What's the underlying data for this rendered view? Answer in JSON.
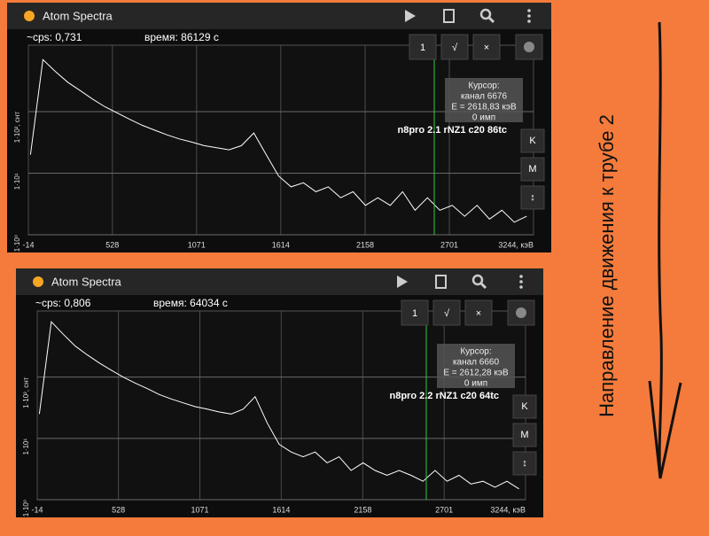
{
  "caption": "Направление движения к трубе 2",
  "screens": [
    {
      "app_title": "Atom Spectra",
      "cps": "~cps: 0,731",
      "time": "время: 86129 с",
      "buttons": [
        "1",
        "√",
        "×"
      ],
      "cursor": [
        "Курсор:",
        "канал 6676",
        "E = 2618,83 кэВ",
        "0 имп"
      ],
      "label": "n8pro 2.1 rNZ1 c20 86tc",
      "side_buttons": [
        "K",
        "M",
        "↕"
      ]
    },
    {
      "app_title": "Atom Spectra",
      "cps": "~cps: 0,806",
      "time": "время: 64034 с",
      "buttons": [
        "1",
        "√",
        "×"
      ],
      "cursor": [
        "Курсор:",
        "канал 6660",
        "E = 2612,28 кэВ",
        "0 имп"
      ],
      "label": "n8pro 2.2 rNZ1 c20 64tc",
      "side_buttons": [
        "K",
        "M",
        "↕"
      ]
    }
  ],
  "chart_data": [
    {
      "type": "line",
      "log_y": true,
      "grid": true,
      "x": [
        0,
        80,
        160,
        240,
        320,
        400,
        480,
        560,
        640,
        720,
        800,
        880,
        960,
        1040,
        1120,
        1200,
        1280,
        1360,
        1440,
        1520,
        1600,
        1680,
        1760,
        1840,
        1920,
        2000,
        2080,
        2160,
        2240,
        2320,
        2400,
        2480,
        2560,
        2640,
        2720,
        2800,
        2880,
        2960,
        3040,
        3120,
        3200
      ],
      "series": [
        {
          "color": "#ffffff",
          "values": [
            20,
            700,
            450,
            300,
            220,
            160,
            120,
            95,
            75,
            60,
            50,
            42,
            36,
            32,
            28,
            26,
            24,
            28,
            45,
            20,
            9,
            6,
            7,
            5,
            6,
            4,
            5,
            3,
            4,
            3,
            5,
            2.5,
            4,
            2.5,
            3,
            2,
            3,
            1.8,
            2.5,
            1.6,
            2
          ]
        }
      ],
      "xlim": [
        -14,
        3244
      ],
      "xticks": [
        -14,
        528,
        1071,
        1614,
        2158,
        2701,
        {
          "value": 3244,
          "label": "3244, кэВ"
        }
      ],
      "ylim": [
        1,
        1200
      ],
      "yticks": [
        {
          "value": 1,
          "label": "1·10⁰"
        },
        {
          "value": 10,
          "label": "1·10¹"
        },
        {
          "value": 100,
          "label": "1·10², снт"
        }
      ]
    },
    {
      "type": "line",
      "log_y": true,
      "grid": true,
      "x": [
        0,
        80,
        160,
        240,
        320,
        400,
        480,
        560,
        640,
        720,
        800,
        880,
        960,
        1040,
        1120,
        1200,
        1280,
        1360,
        1440,
        1520,
        1600,
        1680,
        1760,
        1840,
        1920,
        2000,
        2080,
        2160,
        2240,
        2320,
        2400,
        2480,
        2560,
        2640,
        2720,
        2800,
        2880,
        2960,
        3040,
        3120,
        3200
      ],
      "series": [
        {
          "color": "#ffffff",
          "values": [
            25,
            800,
            500,
            320,
            230,
            170,
            130,
            100,
            80,
            65,
            52,
            44,
            38,
            33,
            30,
            27,
            25,
            30,
            48,
            18,
            8,
            6,
            5,
            6,
            4,
            5,
            3,
            4,
            3,
            2.5,
            3,
            2.5,
            2,
            3,
            2,
            2.5,
            1.8,
            2,
            1.6,
            2,
            1.5
          ]
        }
      ],
      "xlim": [
        -14,
        3244
      ],
      "xticks": [
        -14,
        528,
        1071,
        1614,
        2158,
        2701,
        {
          "value": 3244,
          "label": "3244, кэВ"
        }
      ],
      "ylim": [
        1,
        1200
      ],
      "yticks": [
        {
          "value": 1,
          "label": "1·10⁰"
        },
        {
          "value": 10,
          "label": "1·10¹"
        },
        {
          "value": 100,
          "label": "1·10², снт"
        }
      ]
    }
  ]
}
